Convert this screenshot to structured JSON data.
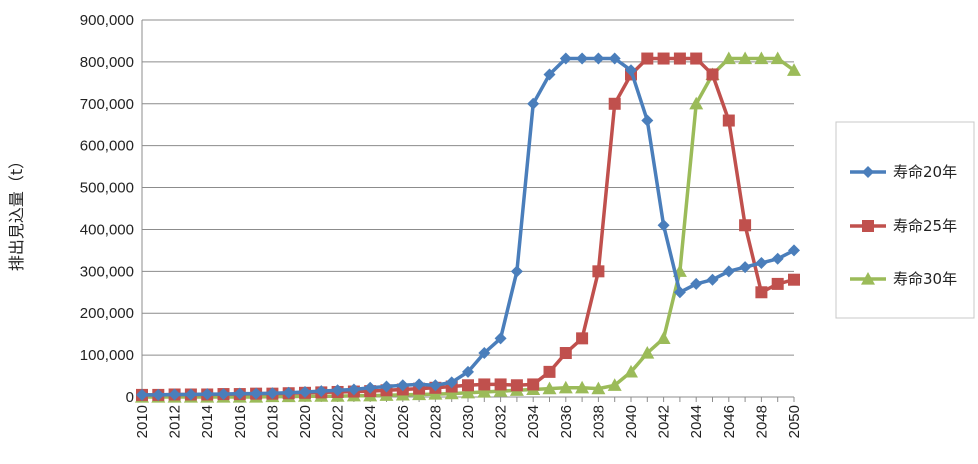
{
  "chart_data": {
    "type": "line",
    "title": "",
    "xlabel": "",
    "ylabel": "排出見込量（t）",
    "ylim": [
      0,
      900000
    ],
    "yticks": [
      0,
      100000,
      200000,
      300000,
      400000,
      500000,
      600000,
      700000,
      800000,
      900000
    ],
    "ytick_labels": [
      "0",
      "100,000",
      "200,000",
      "300,000",
      "400,000",
      "500,000",
      "600,000",
      "700,000",
      "800,000",
      "900,000"
    ],
    "xticks": [
      2010,
      2012,
      2014,
      2016,
      2018,
      2020,
      2022,
      2024,
      2026,
      2028,
      2030,
      2032,
      2034,
      2036,
      2038,
      2040,
      2042,
      2044,
      2046,
      2048,
      2050
    ],
    "grid": true,
    "legend_position": "right",
    "x": [
      2010,
      2011,
      2012,
      2013,
      2014,
      2015,
      2016,
      2017,
      2018,
      2019,
      2020,
      2021,
      2022,
      2023,
      2024,
      2025,
      2026,
      2027,
      2028,
      2029,
      2030,
      2031,
      2032,
      2033,
      2034,
      2035,
      2036,
      2037,
      2038,
      2039,
      2040,
      2041,
      2042,
      2043,
      2044,
      2045,
      2046,
      2047,
      2048,
      2049,
      2050
    ],
    "series": [
      {
        "name": "寿命20年",
        "color": "#4a7ebb",
        "marker": "diamond",
        "values": [
          5000,
          5000,
          6000,
          6000,
          7000,
          7000,
          8000,
          8000,
          9000,
          10000,
          12000,
          14000,
          16000,
          18000,
          22000,
          25000,
          28000,
          30000,
          28000,
          35000,
          60000,
          105000,
          140000,
          300000,
          700000,
          770000,
          808000,
          808000,
          808000,
          808000,
          780000,
          660000,
          410000,
          250000,
          270000,
          280000,
          300000,
          310000,
          320000,
          330000,
          350000
        ]
      },
      {
        "name": "寿命25年",
        "color": "#c0504d",
        "marker": "square",
        "values": [
          5000,
          5000,
          6000,
          6000,
          6000,
          7000,
          7000,
          8000,
          8000,
          9000,
          10000,
          11000,
          12000,
          13000,
          14000,
          16000,
          18000,
          20000,
          22000,
          25000,
          28000,
          30000,
          30000,
          28000,
          30000,
          60000,
          105000,
          140000,
          300000,
          700000,
          770000,
          808000,
          808000,
          808000,
          808000,
          770000,
          660000,
          410000,
          250000,
          270000,
          280000
        ]
      },
      {
        "name": "寿命30年",
        "color": "#9bbb59",
        "marker": "triangle",
        "values": [
          0,
          0,
          0,
          0,
          0,
          0,
          0,
          0,
          1000,
          1000,
          2000,
          2000,
          2000,
          3000,
          3000,
          4000,
          5000,
          6000,
          7000,
          8000,
          10000,
          12000,
          14000,
          16000,
          18000,
          20000,
          22000,
          22000,
          20000,
          28000,
          60000,
          105000,
          140000,
          300000,
          700000,
          770000,
          808000,
          808000,
          808000,
          808000,
          780000
        ]
      }
    ]
  }
}
